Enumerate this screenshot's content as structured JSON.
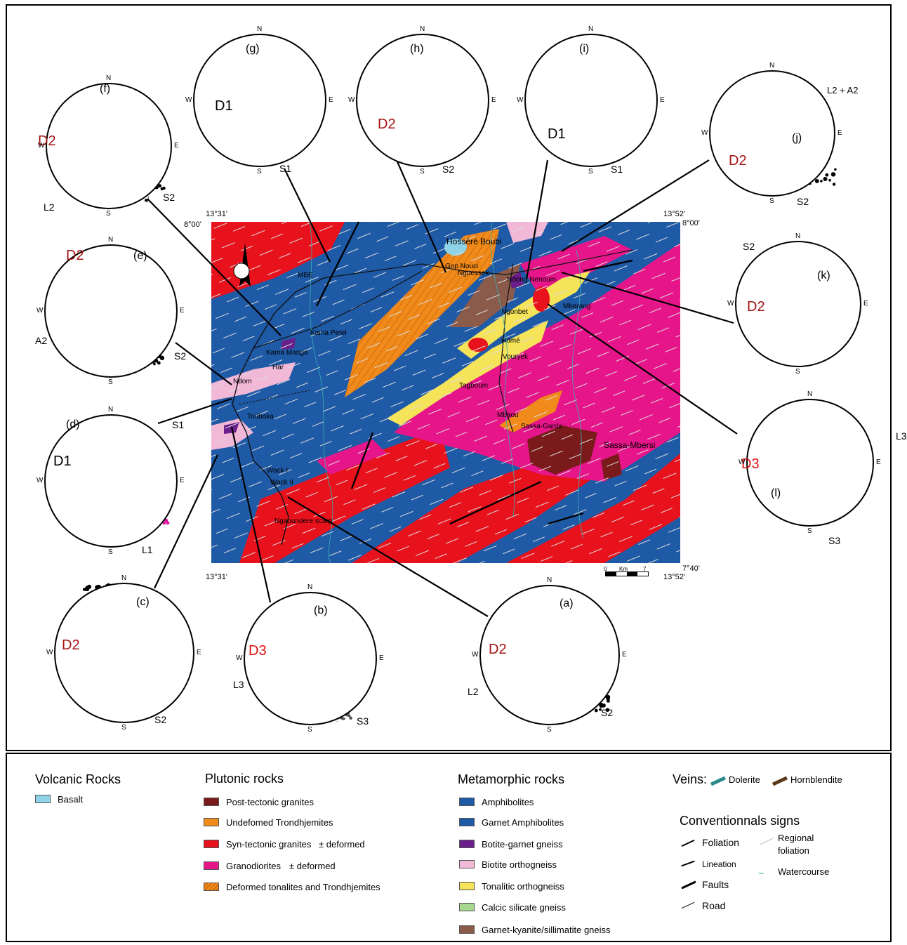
{
  "map": {
    "coords": {
      "top_left": "13°31'",
      "top_right": "13°52'",
      "lat_top": "8°00'",
      "lat_bottom": "7°40'",
      "bottom_left": "13°31'",
      "bottom_right": "13°52'"
    },
    "north_arrow": "N",
    "scale": {
      "start": "0",
      "unit": "Km",
      "end": "7"
    },
    "places": [
      "Hosséré Boubi",
      "Gop Nouci",
      "Nguessek",
      "Ndong Nenoum",
      "Ngonbet",
      "Mbarang",
      "MBE",
      "Kama Petel",
      "Kama Manga",
      "Har",
      "Ndom",
      "Toubaka",
      "Homé",
      "Vouryek",
      "Tagboum",
      "Mbaou",
      "Sassa-Garda",
      "Sassa-Mbersi",
      "Wack I",
      "Wack II",
      "Ngaoundere scarp"
    ],
    "colors": {
      "amphibolite": "#1f5aa6",
      "syn_granite": "#e8121d",
      "granodiorite": "#e6168a",
      "trondhjemite": "#f08a1a",
      "tonalitic": "#f5e35a",
      "biotite_ortho": "#f2b8d8",
      "post_granite": "#7a1a1a",
      "basalt": "#8fd3e8"
    }
  },
  "stereonets": {
    "a": {
      "id": "(a)",
      "phase": "D2",
      "labels": [
        "L2",
        "S2"
      ]
    },
    "b": {
      "id": "(b)",
      "phase": "D3",
      "labels": [
        "L3",
        "S3"
      ]
    },
    "c": {
      "id": "(c)",
      "phase": "D2",
      "labels": [
        "S2"
      ]
    },
    "d": {
      "id": "(d)",
      "phase": "D1",
      "labels": [
        "L1",
        "S1"
      ]
    },
    "e": {
      "id": "(e)",
      "phase": "D2",
      "labels": [
        "A2",
        "S2"
      ]
    },
    "f": {
      "id": "(f)",
      "phase": "D2",
      "labels": [
        "L2",
        "S2"
      ]
    },
    "g": {
      "id": "(g)",
      "phase": "D1",
      "labels": [
        "S1"
      ]
    },
    "h": {
      "id": "(h)",
      "phase": "D2",
      "labels": [
        "S2"
      ]
    },
    "i": {
      "id": "(i)",
      "phase": "D1",
      "labels": [
        "S1"
      ]
    },
    "j": {
      "id": "(j)",
      "phase": "D2",
      "labels": [
        "L2 + A2",
        "S2"
      ]
    },
    "k": {
      "id": "(k)",
      "phase": "D2",
      "labels": [
        "S2"
      ]
    },
    "l": {
      "id": "(l)",
      "phase": "D3",
      "labels": [
        "L3",
        "S3"
      ]
    },
    "dirs": {
      "n": "N",
      "s": "S",
      "e": "E",
      "w": "W"
    }
  },
  "legend": {
    "volcanic": {
      "title": "Volcanic Rocks",
      "items": [
        {
          "label": "Basalt",
          "color": "#8fd3e8"
        }
      ]
    },
    "plutonic": {
      "title": "Plutonic rocks",
      "items": [
        {
          "label": "Post-tectonic granites",
          "color": "#7a1a1a"
        },
        {
          "label": "Undefomed Trondhjemites",
          "color": "#f08a1a"
        },
        {
          "label": "Syn-tectonic granites",
          "suffix": "±  deformed",
          "color": "#e8121d"
        },
        {
          "label": "Granodiorites",
          "suffix": "±  deformed",
          "color": "#e6168a"
        },
        {
          "label": "Deformed tonalites and Trondhjemites",
          "color": "#f08a1a"
        }
      ]
    },
    "metamorphic": {
      "title": "Metamorphic rocks",
      "items": [
        {
          "label": "Amphibolites",
          "color": "#1f5aa6"
        },
        {
          "label": "Garnet Amphibolites",
          "color": "#1f5aa6"
        },
        {
          "label": "Botite-garnet gneiss",
          "color": "#6a1f8a"
        },
        {
          "label": "Biotite orthogneiss",
          "color": "#f2b8d8"
        },
        {
          "label": "Tonalitic orthogneiss",
          "color": "#f5e35a"
        },
        {
          "label": "Calcic silicate gneiss",
          "color": "#a8d890"
        },
        {
          "label": "Garnet-kyanite/sillimatite gneiss",
          "color": "#8a5a4a"
        }
      ]
    },
    "veins": {
      "title": "Veins:",
      "items": [
        "Dolerite",
        "Hornblendite"
      ]
    },
    "signs": {
      "title": "Conventionnals signs",
      "items": [
        "Foliation",
        "Lineation",
        "Faults",
        "Road",
        "Regional",
        "foliation",
        "Watercourse"
      ]
    }
  }
}
